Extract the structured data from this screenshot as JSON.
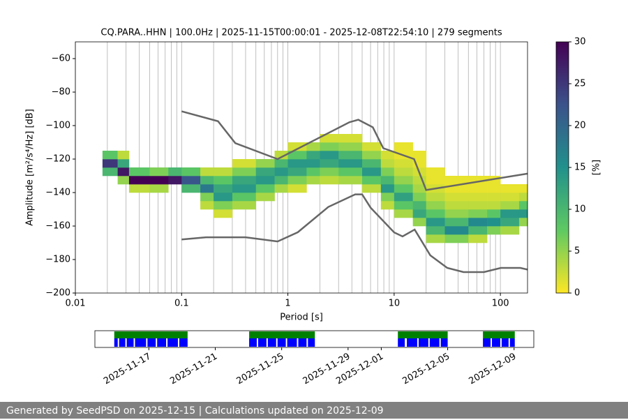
{
  "chart_data": [
    {
      "type": "heatmap",
      "title": "CQ.PARA..HHN | 100.0Hz | 2025-11-15T00:00:01 - 2025-12-08T22:54:10 | 279 segments",
      "x_label": "Period [s]",
      "y_label": "Amplitude [m²/s⁴/Hz] [dB]",
      "x_scale": "log",
      "grid": "x",
      "minor_grid": true,
      "xlim": [
        0.01,
        180
      ],
      "xticks": [
        0.01,
        0.1,
        1,
        10,
        100
      ],
      "ylim": [
        -200,
        -50
      ],
      "yticks": [
        {
          "value": -200,
          "label": "−200"
        },
        {
          "value": -180,
          "label": "−180"
        },
        {
          "value": -160,
          "label": "−160"
        },
        {
          "value": -140,
          "label": "−140"
        },
        {
          "value": -120,
          "label": "−120"
        },
        {
          "value": -100,
          "label": "−100"
        },
        {
          "value": -80,
          "label": "−80"
        },
        {
          "value": -60,
          "label": "−60"
        }
      ],
      "x_edges": [
        0.018,
        0.025,
        0.032,
        0.05,
        0.075,
        0.1,
        0.15,
        0.2,
        0.3,
        0.5,
        0.75,
        1,
        1.5,
        2,
        3,
        5,
        7.5,
        10,
        15,
        20,
        30,
        50,
        75,
        100,
        150,
        180
      ],
      "y_edges": [
        -175,
        -170,
        -165,
        -160,
        -155,
        -150,
        -145,
        -140,
        -135,
        -130,
        -125,
        -120,
        -115,
        -110,
        -105,
        -100,
        -95
      ],
      "z": [
        [
          null,
          null,
          null,
          null,
          null,
          null,
          null,
          null,
          null,
          10,
          25,
          8,
          null,
          null,
          null,
          null
        ],
        [
          null,
          null,
          null,
          null,
          null,
          null,
          null,
          null,
          5,
          28,
          12,
          3,
          null,
          null,
          null,
          null
        ],
        [
          null,
          null,
          null,
          null,
          null,
          null,
          null,
          3,
          30,
          8,
          null,
          null,
          null,
          null,
          null,
          null
        ],
        [
          null,
          null,
          null,
          null,
          null,
          null,
          null,
          4,
          30,
          6,
          null,
          null,
          null,
          null,
          null,
          null
        ],
        [
          null,
          null,
          null,
          null,
          null,
          null,
          null,
          null,
          28,
          10,
          null,
          null,
          null,
          null,
          null,
          null
        ],
        [
          null,
          null,
          null,
          null,
          null,
          null,
          null,
          10,
          22,
          8,
          null,
          null,
          null,
          null,
          null,
          null
        ],
        [
          null,
          null,
          null,
          null,
          null,
          3,
          6,
          18,
          10,
          3,
          null,
          null,
          null,
          null,
          null,
          null
        ],
        [
          null,
          null,
          null,
          null,
          2,
          6,
          14,
          12,
          8,
          3,
          null,
          null,
          null,
          null,
          null,
          null
        ],
        [
          null,
          null,
          null,
          null,
          null,
          4,
          8,
          14,
          12,
          6,
          2,
          null,
          null,
          null,
          null,
          null
        ],
        [
          null,
          null,
          null,
          null,
          null,
          null,
          4,
          8,
          14,
          12,
          5,
          null,
          null,
          null,
          null,
          null
        ],
        [
          null,
          null,
          null,
          null,
          null,
          null,
          null,
          4,
          10,
          14,
          10,
          3,
          null,
          null,
          null,
          null
        ],
        [
          null,
          null,
          null,
          null,
          null,
          null,
          null,
          2,
          6,
          12,
          14,
          8,
          2,
          null,
          null,
          null
        ],
        [
          null,
          null,
          null,
          null,
          null,
          null,
          null,
          null,
          4,
          8,
          14,
          12,
          4,
          null,
          null,
          null
        ],
        [
          null,
          null,
          null,
          null,
          null,
          null,
          null,
          null,
          3,
          6,
          12,
          14,
          6,
          2,
          null,
          null
        ],
        [
          null,
          null,
          null,
          null,
          null,
          null,
          null,
          null,
          4,
          8,
          14,
          10,
          5,
          2,
          null,
          null
        ],
        [
          null,
          null,
          null,
          null,
          null,
          null,
          null,
          3,
          8,
          14,
          10,
          5,
          2,
          null,
          null,
          null
        ],
        [
          null,
          null,
          null,
          null,
          null,
          3,
          6,
          14,
          10,
          6,
          3,
          2,
          null,
          null,
          null,
          null
        ],
        [
          null,
          null,
          null,
          null,
          4,
          8,
          13,
          8,
          5,
          3,
          2,
          1,
          1,
          null,
          null,
          null
        ],
        [
          null,
          null,
          null,
          5,
          12,
          10,
          6,
          4,
          3,
          2,
          1,
          1,
          null,
          null,
          null,
          null
        ],
        [
          null,
          4,
          10,
          14,
          8,
          5,
          3,
          2,
          1,
          1,
          null,
          null,
          null,
          null,
          null,
          null
        ],
        [
          null,
          6,
          16,
          10,
          5,
          3,
          2,
          1,
          1,
          null,
          null,
          null,
          null,
          null,
          null,
          null
        ],
        [
          null,
          3,
          10,
          16,
          6,
          3,
          2,
          1,
          1,
          null,
          null,
          null,
          null,
          null,
          null,
          null
        ],
        [
          null,
          null,
          6,
          15,
          8,
          3,
          2,
          1,
          1,
          null,
          null,
          null,
          null,
          null,
          null,
          null
        ],
        [
          null,
          null,
          4,
          12,
          14,
          4,
          2,
          1,
          null,
          null,
          null,
          null,
          null,
          null,
          null,
          null
        ],
        [
          null,
          null,
          null,
          5,
          14,
          8,
          3,
          1,
          null,
          null,
          null,
          null,
          null,
          null,
          null,
          null
        ]
      ],
      "series": [
        {
          "color": "#666666",
          "x": [
            0.1,
            0.22,
            0.32,
            0.8,
            3.8,
            4.6,
            6.3,
            7.9,
            15.4,
            20,
            180
          ],
          "values": [
            -91.5,
            -97.4,
            -110.5,
            -120,
            -98,
            -96.5,
            -101,
            -113.5,
            -120,
            -138.5,
            -128.7
          ]
        },
        {
          "color": "#666666",
          "x": [
            0.1,
            0.17,
            0.4,
            0.8,
            1.24,
            2.4,
            4.3,
            5,
            6,
            10,
            12,
            15.6,
            21.9,
            31.6,
            45,
            70,
            101,
            154,
            180
          ],
          "values": [
            -168,
            -166.7,
            -166.7,
            -169.2,
            -163.7,
            -148.6,
            -141.1,
            -141.1,
            -149,
            -163.8,
            -166.2,
            -162.1,
            -177.5,
            -185,
            -187.5,
            -187.5,
            -185,
            -185,
            -186
          ]
        }
      ],
      "colorbar": {
        "label": "[%]",
        "lim": [
          0,
          30
        ],
        "ticks": [
          0,
          5,
          10,
          15,
          20,
          25,
          30
        ],
        "colormap": "viridis_r"
      }
    },
    {
      "type": "timeline",
      "xlim": [
        "2025-11-13T18:00",
        "2025-12-10T04:30"
      ],
      "xticks": [
        "2025-11-17",
        "2025-11-21",
        "2025-11-25",
        "2025-11-29",
        "2025-12-01",
        "2025-12-05",
        "2025-12-09"
      ],
      "series": [
        {
          "color": "#008000",
          "values": [
            [
              "2025-11-14T22:00",
              "2025-11-19T08:00"
            ],
            [
              "2025-11-23T01:00",
              "2025-11-27T00:00"
            ],
            [
              "2025-12-02T00:00",
              "2025-12-05T00:00"
            ],
            [
              "2025-12-07T03:00",
              "2025-12-09T01:00"
            ]
          ]
        },
        {
          "color": "#0000ff",
          "values": [
            [
              "2025-11-14T22:00",
              "2025-11-15T03:00"
            ],
            [
              "2025-11-15T05:00",
              "2025-11-15T14:00"
            ],
            [
              "2025-11-15T16:00",
              "2025-11-16T02:00"
            ],
            [
              "2025-11-16T04:00",
              "2025-11-16T20:00"
            ],
            [
              "2025-11-16T22:00",
              "2025-11-17T10:00"
            ],
            [
              "2025-11-17T12:00",
              "2025-11-18T01:00"
            ],
            [
              "2025-11-18T03:00",
              "2025-11-18T18:00"
            ],
            [
              "2025-11-18T20:00",
              "2025-11-19T08:00"
            ],
            [
              "2025-11-23T01:00",
              "2025-11-23T12:00"
            ],
            [
              "2025-11-23T14:00",
              "2025-11-24T02:00"
            ],
            [
              "2025-11-24T04:00",
              "2025-11-24T16:00"
            ],
            [
              "2025-11-24T18:00",
              "2025-11-25T06:00"
            ],
            [
              "2025-11-25T08:00",
              "2025-11-25T22:00"
            ],
            [
              "2025-11-26T00:00",
              "2025-11-26T12:00"
            ],
            [
              "2025-11-26T14:00",
              "2025-11-27T00:00"
            ],
            [
              "2025-12-02T00:00",
              "2025-12-02T10:00"
            ],
            [
              "2025-12-02T13:00",
              "2025-12-03T04:00"
            ],
            [
              "2025-12-03T06:00",
              "2025-12-03T20:00"
            ],
            [
              "2025-12-03T22:00",
              "2025-12-04T12:00"
            ],
            [
              "2025-12-04T14:00",
              "2025-12-05T00:00"
            ],
            [
              "2025-12-07T03:00",
              "2025-12-07T14:00"
            ],
            [
              "2025-12-07T16:00",
              "2025-12-08T04:00"
            ],
            [
              "2025-12-08T06:00",
              "2025-12-08T16:00"
            ],
            [
              "2025-12-08T18:00",
              "2025-12-09T01:00"
            ]
          ]
        }
      ]
    }
  ],
  "footer": "Generated by SeedPSD on 2025-12-15 | Calculations updated on 2025-12-09"
}
